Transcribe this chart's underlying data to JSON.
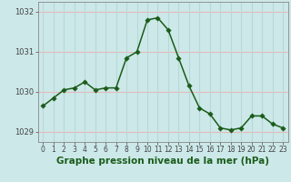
{
  "x": [
    0,
    1,
    2,
    3,
    4,
    5,
    6,
    7,
    8,
    9,
    10,
    11,
    12,
    13,
    14,
    15,
    16,
    17,
    18,
    19,
    20,
    21,
    22,
    23
  ],
  "y": [
    1029.65,
    1029.85,
    1030.05,
    1030.1,
    1030.25,
    1030.05,
    1030.1,
    1030.1,
    1030.85,
    1031.0,
    1031.8,
    1031.85,
    1031.55,
    1030.85,
    1030.15,
    1029.6,
    1029.45,
    1029.1,
    1029.05,
    1029.1,
    1029.4,
    1029.4,
    1029.2,
    1029.1
  ],
  "line_color": "#1a5c1a",
  "marker_color": "#1a5c1a",
  "background_color": "#cce8e8",
  "grid_color_v": "#b8d8d8",
  "grid_color_h": "#e8b8b8",
  "xlabel": "Graphe pression niveau de la mer (hPa)",
  "xlabel_color": "#1a5c1a",
  "xlabel_fontsize": 7.5,
  "xlim": [
    -0.5,
    23.5
  ],
  "ylim": [
    1028.75,
    1032.25
  ],
  "yticks": [
    1029,
    1030,
    1031,
    1032
  ],
  "xticks": [
    0,
    1,
    2,
    3,
    4,
    5,
    6,
    7,
    8,
    9,
    10,
    11,
    12,
    13,
    14,
    15,
    16,
    17,
    18,
    19,
    20,
    21,
    22,
    23
  ],
  "tick_fontsize": 5.5,
  "marker_size": 2.8,
  "line_width": 1.1
}
